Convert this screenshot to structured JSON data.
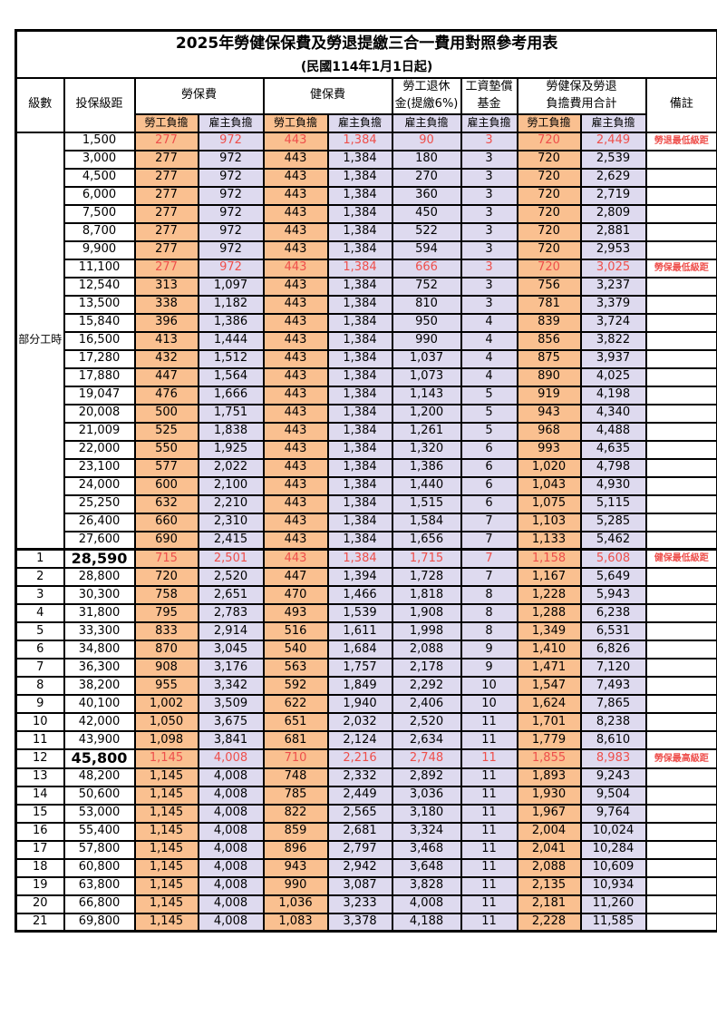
{
  "title": "2025年勞健保保費及勞退提繳三合一費用對照參考用表",
  "subtitle": "(民國114年1月1日起)",
  "colors": {
    "employee_bg": "#FAC090",
    "employer_bg": "#DEDAEF",
    "highlight_text": "#EE4F4B",
    "border": "#000000"
  },
  "header": {
    "level": "級數",
    "bracket": "投保級距",
    "labor": "勞保費",
    "health": "健保費",
    "pension_line1": "勞工退休",
    "pension_line2": "金(提繳6%)",
    "wage_fund_line1": "工資墊償",
    "wage_fund_line2": "基金",
    "total_line1": "勞健保及勞退",
    "total_line2": "負擔費用合計",
    "remark": "備註",
    "employee": "勞工負擔",
    "employer": "雇主負擔"
  },
  "part_time_label": "部分工時",
  "part_time_rowspan": 23,
  "chart_data": {
    "type": "table",
    "title": "2025年勞健保保費及勞退提繳三合一費用對照參考用表 (民國114年1月1日起)",
    "columns": [
      "級數",
      "投保級距",
      "勞保費-勞工負擔",
      "勞保費-雇主負擔",
      "健保費-勞工負擔",
      "健保費-雇主負擔",
      "勞工退休金(提繳6%)-雇主負擔",
      "工資墊償基金-雇主負擔",
      "合計-勞工負擔",
      "合計-雇主負擔",
      "備註"
    ]
  },
  "rows": [
    {
      "level": "",
      "bracket": "1,500",
      "v": [
        "277",
        "972",
        "443",
        "1,384",
        "90",
        "3",
        "720",
        "2,449"
      ],
      "note": "勞退最低級距",
      "hl": true,
      "emph": false,
      "sep": false
    },
    {
      "level": "",
      "bracket": "3,000",
      "v": [
        "277",
        "972",
        "443",
        "1,384",
        "180",
        "3",
        "720",
        "2,539"
      ],
      "note": "",
      "hl": false,
      "emph": false,
      "sep": false
    },
    {
      "level": "",
      "bracket": "4,500",
      "v": [
        "277",
        "972",
        "443",
        "1,384",
        "270",
        "3",
        "720",
        "2,629"
      ],
      "note": "",
      "hl": false,
      "emph": false,
      "sep": false
    },
    {
      "level": "",
      "bracket": "6,000",
      "v": [
        "277",
        "972",
        "443",
        "1,384",
        "360",
        "3",
        "720",
        "2,719"
      ],
      "note": "",
      "hl": false,
      "emph": false,
      "sep": false
    },
    {
      "level": "",
      "bracket": "7,500",
      "v": [
        "277",
        "972",
        "443",
        "1,384",
        "450",
        "3",
        "720",
        "2,809"
      ],
      "note": "",
      "hl": false,
      "emph": false,
      "sep": false
    },
    {
      "level": "",
      "bracket": "8,700",
      "v": [
        "277",
        "972",
        "443",
        "1,384",
        "522",
        "3",
        "720",
        "2,881"
      ],
      "note": "",
      "hl": false,
      "emph": false,
      "sep": false
    },
    {
      "level": "",
      "bracket": "9,900",
      "v": [
        "277",
        "972",
        "443",
        "1,384",
        "594",
        "3",
        "720",
        "2,953"
      ],
      "note": "",
      "hl": false,
      "emph": false,
      "sep": false
    },
    {
      "level": "",
      "bracket": "11,100",
      "v": [
        "277",
        "972",
        "443",
        "1,384",
        "666",
        "3",
        "720",
        "3,025"
      ],
      "note": "勞保最低級距",
      "hl": true,
      "emph": false,
      "sep": false
    },
    {
      "level": "",
      "bracket": "12,540",
      "v": [
        "313",
        "1,097",
        "443",
        "1,384",
        "752",
        "3",
        "756",
        "3,237"
      ],
      "note": "",
      "hl": false,
      "emph": false,
      "sep": false
    },
    {
      "level": "",
      "bracket": "13,500",
      "v": [
        "338",
        "1,182",
        "443",
        "1,384",
        "810",
        "3",
        "781",
        "3,379"
      ],
      "note": "",
      "hl": false,
      "emph": false,
      "sep": false
    },
    {
      "level": "",
      "bracket": "15,840",
      "v": [
        "396",
        "1,386",
        "443",
        "1,384",
        "950",
        "4",
        "839",
        "3,724"
      ],
      "note": "",
      "hl": false,
      "emph": false,
      "sep": false
    },
    {
      "level": "",
      "bracket": "16,500",
      "v": [
        "413",
        "1,444",
        "443",
        "1,384",
        "990",
        "4",
        "856",
        "3,822"
      ],
      "note": "",
      "hl": false,
      "emph": false,
      "sep": false
    },
    {
      "level": "",
      "bracket": "17,280",
      "v": [
        "432",
        "1,512",
        "443",
        "1,384",
        "1,037",
        "4",
        "875",
        "3,937"
      ],
      "note": "",
      "hl": false,
      "emph": false,
      "sep": false
    },
    {
      "level": "",
      "bracket": "17,880",
      "v": [
        "447",
        "1,564",
        "443",
        "1,384",
        "1,073",
        "4",
        "890",
        "4,025"
      ],
      "note": "",
      "hl": false,
      "emph": false,
      "sep": false
    },
    {
      "level": "",
      "bracket": "19,047",
      "v": [
        "476",
        "1,666",
        "443",
        "1,384",
        "1,143",
        "5",
        "919",
        "4,198"
      ],
      "note": "",
      "hl": false,
      "emph": false,
      "sep": false
    },
    {
      "level": "",
      "bracket": "20,008",
      "v": [
        "500",
        "1,751",
        "443",
        "1,384",
        "1,200",
        "5",
        "943",
        "4,340"
      ],
      "note": "",
      "hl": false,
      "emph": false,
      "sep": false
    },
    {
      "level": "",
      "bracket": "21,009",
      "v": [
        "525",
        "1,838",
        "443",
        "1,384",
        "1,261",
        "5",
        "968",
        "4,488"
      ],
      "note": "",
      "hl": false,
      "emph": false,
      "sep": false
    },
    {
      "level": "",
      "bracket": "22,000",
      "v": [
        "550",
        "1,925",
        "443",
        "1,384",
        "1,320",
        "6",
        "993",
        "4,635"
      ],
      "note": "",
      "hl": false,
      "emph": false,
      "sep": false
    },
    {
      "level": "",
      "bracket": "23,100",
      "v": [
        "577",
        "2,022",
        "443",
        "1,384",
        "1,386",
        "6",
        "1,020",
        "4,798"
      ],
      "note": "",
      "hl": false,
      "emph": false,
      "sep": false
    },
    {
      "level": "",
      "bracket": "24,000",
      "v": [
        "600",
        "2,100",
        "443",
        "1,384",
        "1,440",
        "6",
        "1,043",
        "4,930"
      ],
      "note": "",
      "hl": false,
      "emph": false,
      "sep": false
    },
    {
      "level": "",
      "bracket": "25,250",
      "v": [
        "632",
        "2,210",
        "443",
        "1,384",
        "1,515",
        "6",
        "1,075",
        "5,115"
      ],
      "note": "",
      "hl": false,
      "emph": false,
      "sep": false
    },
    {
      "level": "",
      "bracket": "26,400",
      "v": [
        "660",
        "2,310",
        "443",
        "1,384",
        "1,584",
        "7",
        "1,103",
        "5,285"
      ],
      "note": "",
      "hl": false,
      "emph": false,
      "sep": false
    },
    {
      "level": "",
      "bracket": "27,600",
      "v": [
        "690",
        "2,415",
        "443",
        "1,384",
        "1,656",
        "7",
        "1,133",
        "5,462"
      ],
      "note": "",
      "hl": false,
      "emph": false,
      "sep": false
    },
    {
      "level": "1",
      "bracket": "28,590",
      "v": [
        "715",
        "2,501",
        "443",
        "1,384",
        "1,715",
        "7",
        "1,158",
        "5,608"
      ],
      "note": "健保最低級距",
      "hl": true,
      "emph": true,
      "sep": true
    },
    {
      "level": "2",
      "bracket": "28,800",
      "v": [
        "720",
        "2,520",
        "447",
        "1,394",
        "1,728",
        "7",
        "1,167",
        "5,649"
      ],
      "note": "",
      "hl": false,
      "emph": false,
      "sep": false
    },
    {
      "level": "3",
      "bracket": "30,300",
      "v": [
        "758",
        "2,651",
        "470",
        "1,466",
        "1,818",
        "8",
        "1,228",
        "5,943"
      ],
      "note": "",
      "hl": false,
      "emph": false,
      "sep": false
    },
    {
      "level": "4",
      "bracket": "31,800",
      "v": [
        "795",
        "2,783",
        "493",
        "1,539",
        "1,908",
        "8",
        "1,288",
        "6,238"
      ],
      "note": "",
      "hl": false,
      "emph": false,
      "sep": false
    },
    {
      "level": "5",
      "bracket": "33,300",
      "v": [
        "833",
        "2,914",
        "516",
        "1,611",
        "1,998",
        "8",
        "1,349",
        "6,531"
      ],
      "note": "",
      "hl": false,
      "emph": false,
      "sep": false
    },
    {
      "level": "6",
      "bracket": "34,800",
      "v": [
        "870",
        "3,045",
        "540",
        "1,684",
        "2,088",
        "9",
        "1,410",
        "6,826"
      ],
      "note": "",
      "hl": false,
      "emph": false,
      "sep": false
    },
    {
      "level": "7",
      "bracket": "36,300",
      "v": [
        "908",
        "3,176",
        "563",
        "1,757",
        "2,178",
        "9",
        "1,471",
        "7,120"
      ],
      "note": "",
      "hl": false,
      "emph": false,
      "sep": false
    },
    {
      "level": "8",
      "bracket": "38,200",
      "v": [
        "955",
        "3,342",
        "592",
        "1,849",
        "2,292",
        "10",
        "1,547",
        "7,493"
      ],
      "note": "",
      "hl": false,
      "emph": false,
      "sep": false
    },
    {
      "level": "9",
      "bracket": "40,100",
      "v": [
        "1,002",
        "3,509",
        "622",
        "1,940",
        "2,406",
        "10",
        "1,624",
        "7,865"
      ],
      "note": "",
      "hl": false,
      "emph": false,
      "sep": false
    },
    {
      "level": "10",
      "bracket": "42,000",
      "v": [
        "1,050",
        "3,675",
        "651",
        "2,032",
        "2,520",
        "11",
        "1,701",
        "8,238"
      ],
      "note": "",
      "hl": false,
      "emph": false,
      "sep": false
    },
    {
      "level": "11",
      "bracket": "43,900",
      "v": [
        "1,098",
        "3,841",
        "681",
        "2,124",
        "2,634",
        "11",
        "1,779",
        "8,610"
      ],
      "note": "",
      "hl": false,
      "emph": false,
      "sep": false
    },
    {
      "level": "12",
      "bracket": "45,800",
      "v": [
        "1,145",
        "4,008",
        "710",
        "2,216",
        "2,748",
        "11",
        "1,855",
        "8,983"
      ],
      "note": "勞保最高級距",
      "hl": true,
      "emph": true,
      "sep": false
    },
    {
      "level": "13",
      "bracket": "48,200",
      "v": [
        "1,145",
        "4,008",
        "748",
        "2,332",
        "2,892",
        "11",
        "1,893",
        "9,243"
      ],
      "note": "",
      "hl": false,
      "emph": false,
      "sep": false
    },
    {
      "level": "14",
      "bracket": "50,600",
      "v": [
        "1,145",
        "4,008",
        "785",
        "2,449",
        "3,036",
        "11",
        "1,930",
        "9,504"
      ],
      "note": "",
      "hl": false,
      "emph": false,
      "sep": false
    },
    {
      "level": "15",
      "bracket": "53,000",
      "v": [
        "1,145",
        "4,008",
        "822",
        "2,565",
        "3,180",
        "11",
        "1,967",
        "9,764"
      ],
      "note": "",
      "hl": false,
      "emph": false,
      "sep": false
    },
    {
      "level": "16",
      "bracket": "55,400",
      "v": [
        "1,145",
        "4,008",
        "859",
        "2,681",
        "3,324",
        "11",
        "2,004",
        "10,024"
      ],
      "note": "",
      "hl": false,
      "emph": false,
      "sep": false
    },
    {
      "level": "17",
      "bracket": "57,800",
      "v": [
        "1,145",
        "4,008",
        "896",
        "2,797",
        "3,468",
        "11",
        "2,041",
        "10,284"
      ],
      "note": "",
      "hl": false,
      "emph": false,
      "sep": false
    },
    {
      "level": "18",
      "bracket": "60,800",
      "v": [
        "1,145",
        "4,008",
        "943",
        "2,942",
        "3,648",
        "11",
        "2,088",
        "10,609"
      ],
      "note": "",
      "hl": false,
      "emph": false,
      "sep": false
    },
    {
      "level": "19",
      "bracket": "63,800",
      "v": [
        "1,145",
        "4,008",
        "990",
        "3,087",
        "3,828",
        "11",
        "2,135",
        "10,934"
      ],
      "note": "",
      "hl": false,
      "emph": false,
      "sep": false
    },
    {
      "level": "20",
      "bracket": "66,800",
      "v": [
        "1,145",
        "4,008",
        "1,036",
        "3,233",
        "4,008",
        "11",
        "2,181",
        "11,260"
      ],
      "note": "",
      "hl": false,
      "emph": false,
      "sep": false
    },
    {
      "level": "21",
      "bracket": "69,800",
      "v": [
        "1,145",
        "4,008",
        "1,083",
        "3,378",
        "4,188",
        "11",
        "2,228",
        "11,585"
      ],
      "note": "",
      "hl": false,
      "emph": false,
      "sep": false
    }
  ]
}
